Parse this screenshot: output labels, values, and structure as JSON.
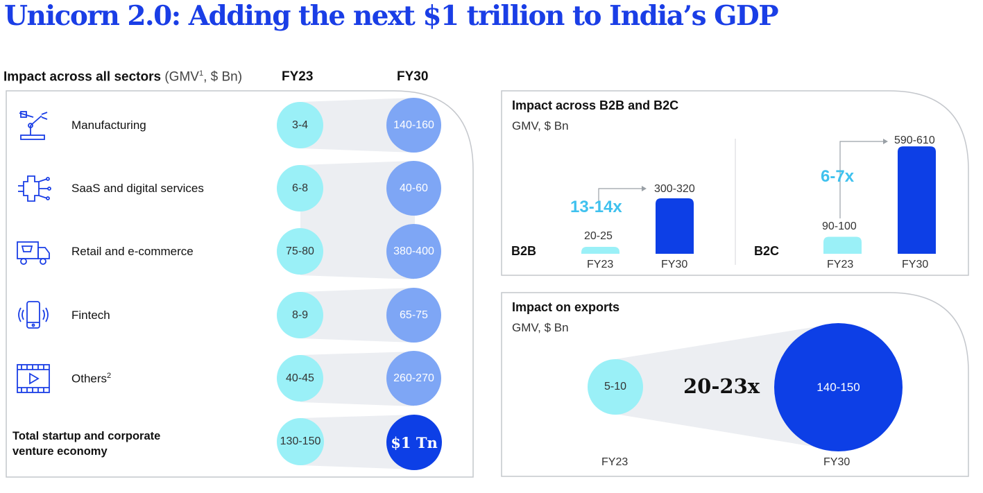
{
  "title": "Unicorn 2.0: Adding the next $1 trillion to India’s GDP",
  "left": {
    "header_bold": "Impact across all sectors",
    "header_light": " (GMV",
    "header_sup": "1",
    "header_tail": ", $ Bn)",
    "col_fy23": "FY23",
    "col_fy30": "FY30",
    "sectors": [
      {
        "name": "Manufacturing",
        "fy23": "3-4",
        "fy30": "140-160",
        "icon": "robot-arm-icon"
      },
      {
        "name": "SaaS and digital services",
        "fy23": "6-8",
        "fy30": "40-60",
        "icon": "chip-icon"
      },
      {
        "name": "Retail and e-commerce",
        "fy23": "75-80",
        "fy30": "380-400",
        "icon": "delivery-truck-icon"
      },
      {
        "name": "Fintech",
        "fy23": "8-9",
        "fy30": "65-75",
        "icon": "mobile-phone-icon"
      },
      {
        "name": "Others",
        "name_sup": "2",
        "fy23": "40-45",
        "fy30": "260-270",
        "icon": "video-play-icon"
      }
    ],
    "total": {
      "line1": "Total startup and corporate",
      "line2": "venture economy",
      "fy23": "130-150",
      "fy30": "$1 Tn"
    }
  },
  "b2b_b2c": {
    "title": "Impact across B2B and B2C",
    "subtitle": "GMV, $ Bn",
    "b2b": {
      "label": "B2B",
      "fy23": "20-25",
      "fy30": "300-320",
      "multiple": "13-14x",
      "x1": "FY23",
      "x2": "FY30"
    },
    "b2c": {
      "label": "B2C",
      "fy23": "90-100",
      "fy30": "590-610",
      "multiple": "6-7x",
      "x1": "FY23",
      "x2": "FY30"
    }
  },
  "exports": {
    "title": "Impact on exports",
    "subtitle": "GMV, $ Bn",
    "fy23": "5-10",
    "fy30": "140-150",
    "multiple": "20-23x",
    "x1": "FY23",
    "x2": "FY30"
  },
  "colors": {
    "title": "#1a3ee6",
    "light_circle": "#9af0f7",
    "mid_circle": "#7ea6f5",
    "dark": "#0d3fe6",
    "multiple": "#3fc1ee"
  },
  "chart_data": [
    {
      "type": "table",
      "title": "Impact across all sectors",
      "columns": [
        "FY23",
        "FY30"
      ],
      "rows": [
        {
          "category": "Manufacturing",
          "FY23": "3-4",
          "FY30": "140-160"
        },
        {
          "category": "SaaS and digital services",
          "FY23": "6-8",
          "FY30": "40-60"
        },
        {
          "category": "Retail and e-commerce",
          "FY23": "75-80",
          "FY30": "380-400"
        },
        {
          "category": "Fintech",
          "FY23": "8-9",
          "FY30": "65-75"
        },
        {
          "category": "Others",
          "FY23": "40-45",
          "FY30": "260-270"
        },
        {
          "category": "Total startup and corporate venture economy",
          "FY23": "130-150",
          "FY30": "$1 Tn"
        }
      ]
    },
    {
      "type": "bar",
      "title": "Impact across B2B and B2C",
      "categories": [
        "FY23",
        "FY30"
      ],
      "series": [
        {
          "name": "B2B",
          "values": [
            22.5,
            310
          ],
          "labels": [
            "20-25",
            "300-320"
          ]
        },
        {
          "name": "B2C",
          "values": [
            95,
            600
          ],
          "labels": [
            "90-100",
            "590-610"
          ]
        }
      ],
      "ylabel": "GMV, $ Bn",
      "ylim": [
        0,
        620
      ]
    },
    {
      "type": "scatter",
      "title": "Impact on exports",
      "categories": [
        "FY23",
        "FY30"
      ],
      "values": [
        7.5,
        145
      ],
      "labels": [
        "5-10",
        "140-150"
      ],
      "ylabel": "GMV, $ Bn"
    }
  ]
}
